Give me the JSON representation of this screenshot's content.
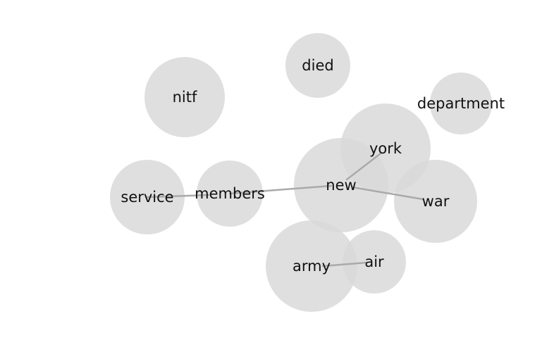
{
  "diagram": {
    "type": "word-cooccurrence-bubble-network",
    "colors": {
      "node_fill": "#d9d9d9",
      "edge": "#aaaaaa",
      "label": "#111111",
      "background": "#ffffff"
    },
    "nodes": [
      {
        "id": "died",
        "label": "died"
      },
      {
        "id": "nitf",
        "label": "nitf"
      },
      {
        "id": "department",
        "label": "department"
      },
      {
        "id": "york",
        "label": "york"
      },
      {
        "id": "new",
        "label": "new"
      },
      {
        "id": "war",
        "label": "war"
      },
      {
        "id": "service",
        "label": "service"
      },
      {
        "id": "members",
        "label": "members"
      },
      {
        "id": "army",
        "label": "army"
      },
      {
        "id": "air",
        "label": "air"
      }
    ],
    "edges": [
      {
        "source": "service",
        "target": "members"
      },
      {
        "source": "members",
        "target": "new"
      },
      {
        "source": "new",
        "target": "york"
      },
      {
        "source": "new",
        "target": "war"
      },
      {
        "source": "army",
        "target": "air"
      }
    ]
  }
}
